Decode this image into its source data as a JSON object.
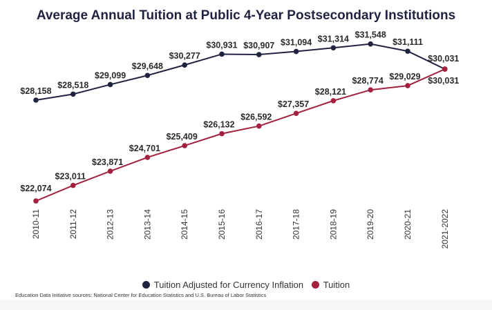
{
  "chart_data": {
    "type": "line",
    "title": "Average Annual Tuition at Public 4-Year Postsecondary Institutions",
    "categories": [
      "2010-11",
      "2011-12",
      "2012-13",
      "2013-14",
      "2014-15",
      "2015-16",
      "2016-17",
      "2017-18",
      "2018-19",
      "2019-20",
      "2020-21",
      "2021-2022"
    ],
    "series": [
      {
        "name": "Tuition Adjusted for Currency Inflation",
        "color": "#1f2340",
        "values": [
          28158,
          28518,
          29099,
          29648,
          30277,
          30931,
          30907,
          31094,
          31314,
          31548,
          31111,
          30031
        ],
        "labels": [
          "$28,158",
          "$28,518",
          "$29,099",
          "$29,648",
          "$30,277",
          "$30,931",
          "$30,907",
          "$31,094",
          "$31,314",
          "$31,548",
          "$31,111",
          "$30,031"
        ]
      },
      {
        "name": "Tuition",
        "color": "#a3203f",
        "values": [
          22074,
          23011,
          23871,
          24701,
          25409,
          26132,
          26592,
          27357,
          28121,
          28774,
          29029,
          30031
        ],
        "labels": [
          "$22,074",
          "$23,011",
          "$23,871",
          "$24,701",
          "$25,409",
          "$26,132",
          "$26,592",
          "$27,357",
          "$28,121",
          "$28,774",
          "$29,029",
          "$30,031"
        ]
      }
    ],
    "xlabel": "",
    "ylabel": "",
    "grid": false,
    "legend": "bottom"
  },
  "source": "Education Data Initiative sources: National Center for Education Statistics and U.S. Bureau of Labor Statistics"
}
